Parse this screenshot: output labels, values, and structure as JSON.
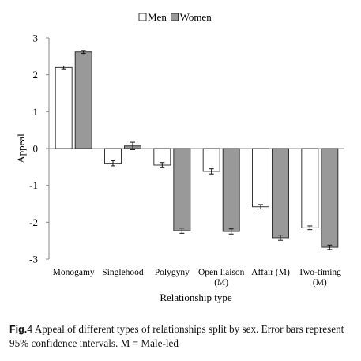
{
  "chart_data": {
    "type": "bar",
    "categories": [
      [
        "Monogamy"
      ],
      [
        "Singlehood"
      ],
      [
        "Polygyny"
      ],
      [
        "Open liaison",
        "(M)"
      ],
      [
        "Affair (M)"
      ],
      [
        "Two-timing",
        "(M)"
      ]
    ],
    "series": [
      {
        "name": "Men",
        "color": "#ffffff",
        "values": [
          2.2,
          -0.4,
          -0.45,
          -0.62,
          -1.58,
          -2.15
        ],
        "ci": [
          0.04,
          0.07,
          0.07,
          0.07,
          0.06,
          0.05
        ]
      },
      {
        "name": "Women",
        "color": "#999999",
        "values": [
          2.62,
          0.07,
          -2.23,
          -2.25,
          -2.42,
          -2.68
        ],
        "ci": [
          0.04,
          0.1,
          0.07,
          0.07,
          0.07,
          0.06
        ]
      }
    ],
    "ylabel": "Appeal",
    "xlabel": "Relationship type",
    "ylim": [
      -3,
      3
    ],
    "yticks": [
      "3",
      "2",
      "1",
      "0",
      "-1",
      "-2",
      "-3"
    ],
    "ytick_values": [
      3,
      2,
      1,
      0,
      -1,
      -2,
      -3
    ],
    "legend_position": "top-center",
    "grid": false
  },
  "caption": {
    "label": "Fig.",
    "number": "4",
    "text": " Appeal of different types of relationships split by sex. Error bars represent 95% confidence intervals. M = Male-led"
  }
}
